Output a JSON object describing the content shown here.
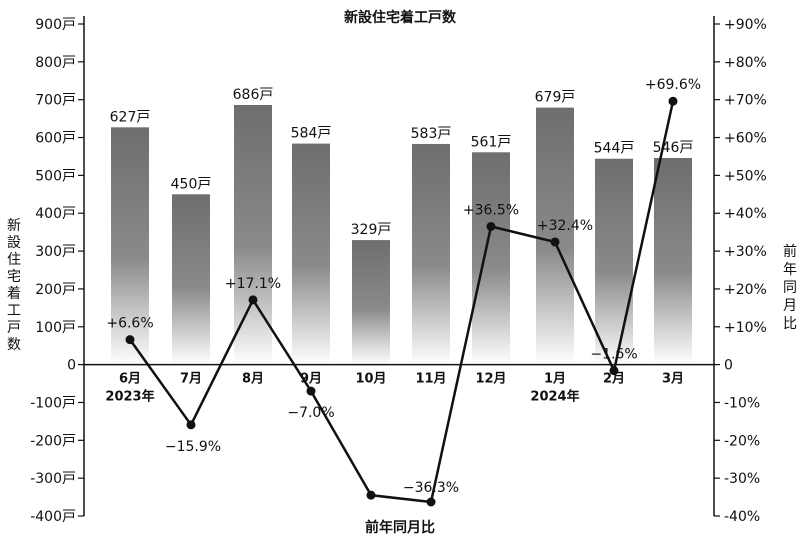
{
  "chart_data": {
    "type": "bar+line",
    "title": "新設住宅着工戸数",
    "bottom_label": "前年同月比",
    "left_axis_label": "新設住宅着工戸数",
    "right_axis_label": "前年同月比",
    "categories": [
      "6月",
      "7月",
      "8月",
      "9月",
      "10月",
      "11月",
      "12月",
      "1月",
      "2月",
      "3月"
    ],
    "year_labels": {
      "0": "2023年",
      "7": "2024年"
    },
    "left_axis": {
      "min": -400,
      "max": 900,
      "step": 100,
      "unit": "戸",
      "tick_labels": [
        "900戸",
        "800戸",
        "700戸",
        "600戸",
        "500戸",
        "400戸",
        "300戸",
        "200戸",
        "100戸",
        "0",
        "-100戸",
        "-200戸",
        "-300戸",
        "-400戸"
      ]
    },
    "right_axis": {
      "min": -40,
      "max": 90,
      "step": 10,
      "unit": "%",
      "tick_labels": [
        "+90%",
        "+80%",
        "+70%",
        "+60%",
        "+50%",
        "+40%",
        "+30%",
        "+20%",
        "+10%",
        "0",
        "-10%",
        "-20%",
        "-30%",
        "-40%"
      ]
    },
    "bars": {
      "name": "新設住宅着工戸数",
      "values": [
        627,
        450,
        686,
        584,
        329,
        583,
        561,
        679,
        544,
        546
      ],
      "labels": [
        "627戸",
        "450戸",
        "686戸",
        "584戸",
        "329戸",
        "583戸",
        "561戸",
        "679戸",
        "544戸",
        "546戸"
      ]
    },
    "line": {
      "name": "前年同月比",
      "values": [
        6.6,
        -15.9,
        17.1,
        -7.0,
        -34.5,
        -36.3,
        36.5,
        32.4,
        -1.6,
        69.6
      ],
      "labels": [
        "+6.6%",
        "−15.9%",
        "+17.1%",
        "−7.0%",
        null,
        "−36.3%",
        "+36.5%",
        "+32.4%",
        "−1.6%",
        "+69.6%"
      ]
    },
    "colors": {
      "bar_top": "#6e6e6e",
      "bar_bottom": "#ffffff",
      "line": "#111111"
    }
  }
}
